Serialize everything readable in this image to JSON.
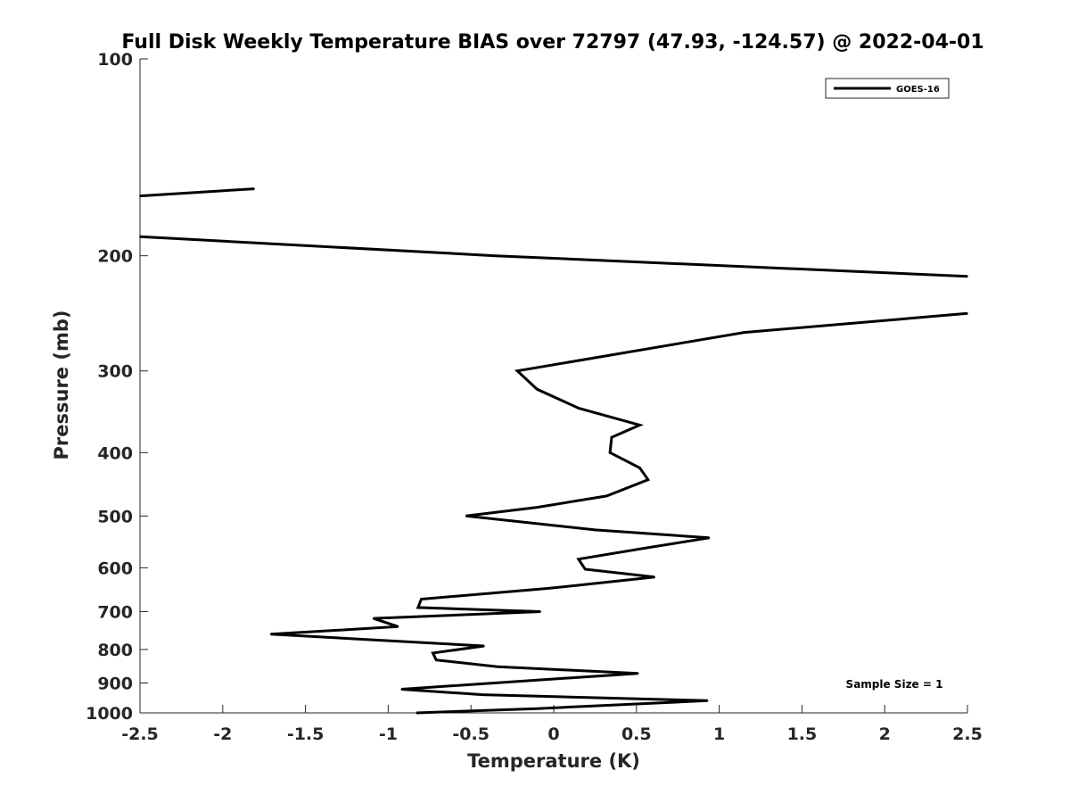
{
  "chart_data": {
    "type": "line",
    "title": "Full Disk Weekly Temperature BIAS over 72797 (47.93, -124.57) @ 2022-04-01",
    "xlabel": "Temperature (K)",
    "ylabel": "Pressure (mb)",
    "xlim": [
      -2.5,
      2.5
    ],
    "ylim": [
      100,
      1000
    ],
    "y_scale": "log",
    "y_direction": "reversed",
    "x_ticks": [
      "-2.5",
      "-2",
      "-1.5",
      "-1",
      "-0.5",
      "0",
      "0.5",
      "1",
      "1.5",
      "2",
      "2.5"
    ],
    "y_ticks": [
      {
        "value": 100,
        "label": "100"
      },
      {
        "value": 200,
        "label": "200"
      },
      {
        "value": 300,
        "label": "300"
      },
      {
        "value": 400,
        "label": "400"
      },
      {
        "value": 500,
        "label": "500"
      },
      {
        "value": 600,
        "label": "600"
      },
      {
        "value": 700,
        "label": "700"
      },
      {
        "value": 800,
        "label": "800"
      },
      {
        "value": 900,
        "label": "900"
      },
      {
        "value": 1000,
        "label": "1000"
      }
    ],
    "grid": false,
    "legend_position": "top-right",
    "line_color": "#000000",
    "annotation": "Sample Size = 1",
    "series": [
      {
        "name": "GOES-16",
        "segments": [
          [
            {
              "x": -2.5,
              "y": 162
            },
            {
              "x": -1.81,
              "y": 158
            }
          ],
          [
            {
              "x": -2.5,
              "y": 187
            },
            {
              "x": -0.35,
              "y": 200
            },
            {
              "x": 2.5,
              "y": 215
            }
          ],
          [
            {
              "x": 2.5,
              "y": 245
            },
            {
              "x": 1.15,
              "y": 262
            },
            {
              "x": 0.3,
              "y": 285
            },
            {
              "x": -0.22,
              "y": 300
            },
            {
              "x": -0.1,
              "y": 320
            },
            {
              "x": 0.15,
              "y": 342
            },
            {
              "x": 0.52,
              "y": 363
            },
            {
              "x": 0.35,
              "y": 379
            },
            {
              "x": 0.34,
              "y": 400
            },
            {
              "x": 0.52,
              "y": 422
            },
            {
              "x": 0.57,
              "y": 440
            },
            {
              "x": 0.32,
              "y": 466
            },
            {
              "x": -0.1,
              "y": 485
            },
            {
              "x": -0.53,
              "y": 500
            },
            {
              "x": 0.25,
              "y": 525
            },
            {
              "x": 0.94,
              "y": 540
            },
            {
              "x": 0.55,
              "y": 560
            },
            {
              "x": 0.15,
              "y": 582
            },
            {
              "x": 0.19,
              "y": 603
            },
            {
              "x": 0.61,
              "y": 620
            },
            {
              "x": -0.03,
              "y": 645
            },
            {
              "x": -0.8,
              "y": 670
            },
            {
              "x": -0.82,
              "y": 690
            },
            {
              "x": -0.08,
              "y": 700
            },
            {
              "x": -1.09,
              "y": 717
            },
            {
              "x": -0.94,
              "y": 738
            },
            {
              "x": -1.71,
              "y": 758
            },
            {
              "x": -0.42,
              "y": 790
            },
            {
              "x": -0.73,
              "y": 810
            },
            {
              "x": -0.71,
              "y": 830
            },
            {
              "x": -0.34,
              "y": 850
            },
            {
              "x": 0.51,
              "y": 870
            },
            {
              "x": -0.07,
              "y": 890
            },
            {
              "x": -0.92,
              "y": 920
            },
            {
              "x": -0.43,
              "y": 938
            },
            {
              "x": 0.93,
              "y": 958
            },
            {
              "x": -0.1,
              "y": 985
            },
            {
              "x": -0.83,
              "y": 1000
            }
          ]
        ]
      }
    ]
  }
}
